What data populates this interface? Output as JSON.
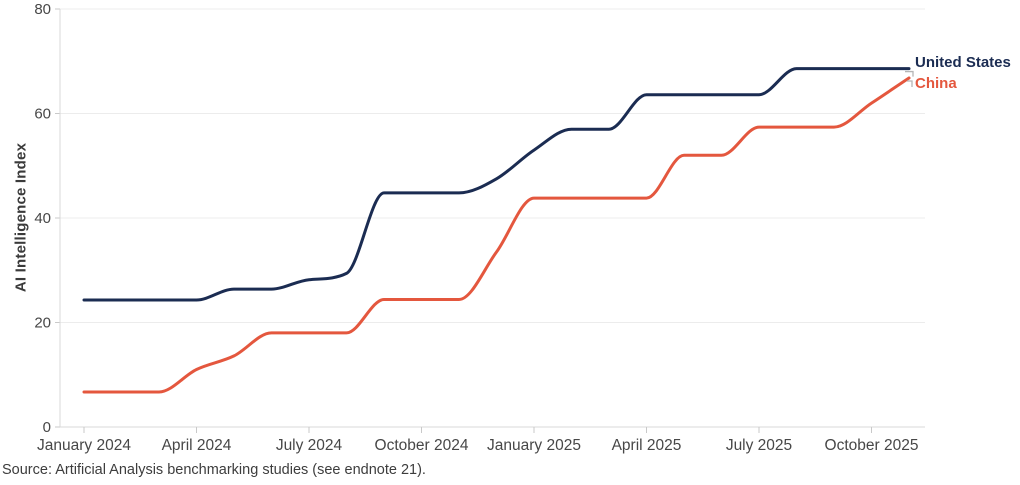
{
  "source": "Source: Artificial Analysis benchmarking studies (see endnote 21).",
  "colors": {
    "united_states": "#1b2c52",
    "china": "#e4573e",
    "grid": "#ececec",
    "axis": "#d9d9d9",
    "tick": "#c9c9c9",
    "leader": "#b5b5b5",
    "tick_label": "#474747"
  },
  "chart_data": {
    "type": "line",
    "title": "",
    "xlabel": "",
    "ylabel": "AI Intelligence Index",
    "ylim": [
      0,
      80
    ],
    "y_ticks": [
      0,
      20,
      40,
      60,
      80
    ],
    "grid": "horizontal",
    "legend_position": "end-of-line",
    "months": [
      "Jan 2024",
      "Feb 2024",
      "Mar 2024",
      "Apr 2024",
      "May 2024",
      "Jun 2024",
      "Jul 2024",
      "Aug 2024",
      "Sep 2024",
      "Oct 2024",
      "Nov 2024",
      "Dec 2024",
      "Jan 2025",
      "Feb 2025",
      "Mar 2025",
      "Apr 2025",
      "May 2025",
      "Jun 2025",
      "Jul 2025",
      "Aug 2025",
      "Sep 2025",
      "Oct 2025",
      "Nov 2025"
    ],
    "x_tick_labels": [
      "January 2024",
      "April 2024",
      "July 2024",
      "October 2024",
      "January 2025",
      "April 2025",
      "July 2025",
      "October 2025"
    ],
    "x_tick_month_index": [
      0,
      3,
      6,
      9,
      12,
      15,
      18,
      21
    ],
    "series": [
      {
        "name": "United States",
        "color": "#1b2c52",
        "values": [
          24.3,
          24.3,
          24.3,
          24.3,
          26.4,
          26.4,
          28.2,
          29.4,
          44.8,
          44.8,
          44.8,
          47.5,
          53.0,
          57.0,
          57.0,
          63.6,
          63.6,
          63.6,
          63.6,
          68.6,
          68.6,
          68.6,
          68.6
        ]
      },
      {
        "name": "China",
        "color": "#e4573e",
        "values": [
          6.7,
          6.7,
          6.7,
          11.0,
          13.6,
          18.0,
          18.0,
          18.0,
          24.4,
          24.4,
          24.4,
          33.5,
          43.8,
          43.8,
          43.8,
          43.8,
          52.0,
          52.0,
          57.4,
          57.4,
          57.4,
          62.0,
          66.8
        ]
      }
    ]
  }
}
